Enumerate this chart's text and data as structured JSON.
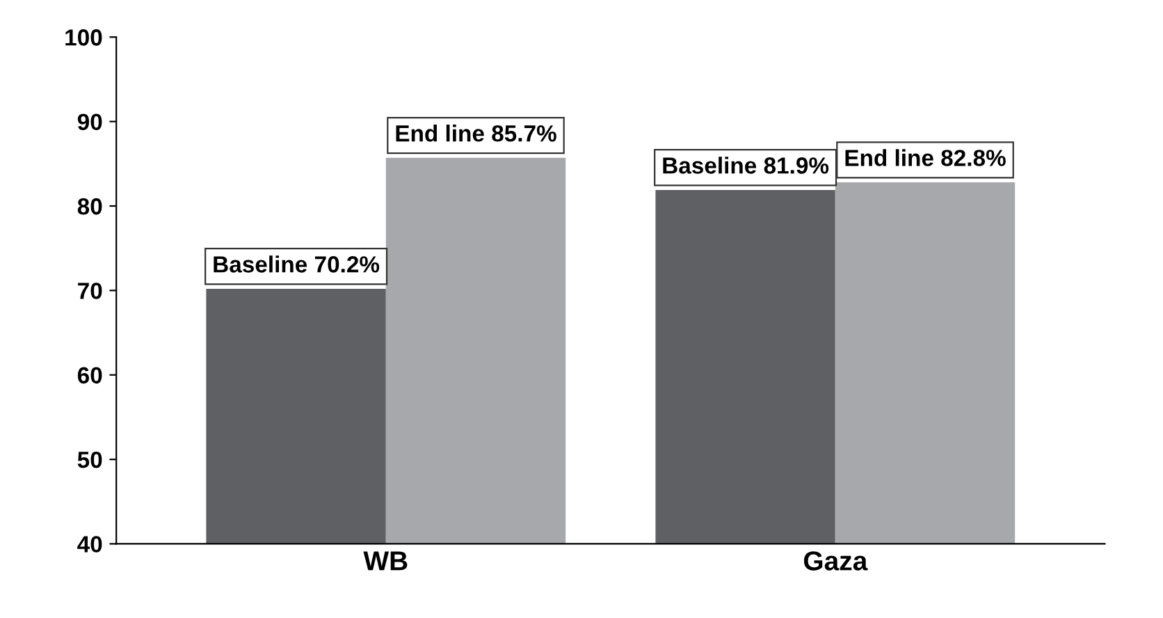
{
  "chart_data": {
    "type": "bar",
    "categories": [
      "WB",
      "Gaza"
    ],
    "series": [
      {
        "color": "#5f6064",
        "values": [
          70.2,
          81.9
        ],
        "value_labels": [
          "Baseline 70.2%",
          "Baseline 81.9%"
        ]
      },
      {
        "color": "#a6a8ab",
        "values": [
          85.7,
          82.8
        ],
        "value_labels": [
          "End line 85.7%",
          "End line 82.8%"
        ]
      }
    ],
    "ylim": [
      40,
      100
    ],
    "yticks": [
      40,
      50,
      60,
      70,
      80,
      90,
      100
    ],
    "grid": false,
    "legend": false
  }
}
